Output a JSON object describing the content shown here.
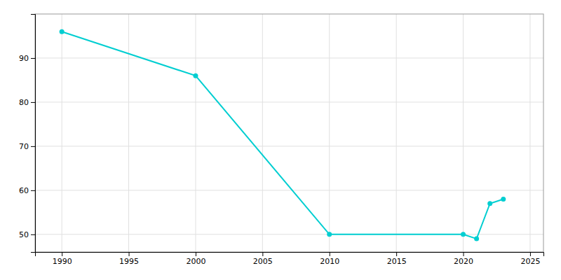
{
  "chart_data": {
    "type": "line",
    "x": [
      1990,
      2000,
      2010,
      2020,
      2021,
      2022,
      2023
    ],
    "values": [
      96,
      86,
      50,
      50,
      49,
      57,
      58
    ],
    "color": "#00CED1",
    "marker": "circle",
    "xlim": [
      1988,
      2026
    ],
    "ylim": [
      46,
      100
    ],
    "xticks": [
      1990,
      1995,
      2000,
      2005,
      2010,
      2015,
      2020,
      2025
    ],
    "yticks": [
      50,
      60,
      70,
      80,
      90
    ],
    "grid": true
  }
}
